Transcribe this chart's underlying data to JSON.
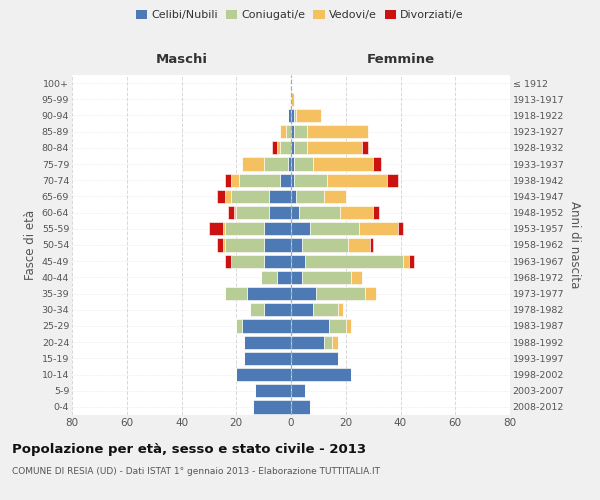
{
  "age_groups": [
    "0-4",
    "5-9",
    "10-14",
    "15-19",
    "20-24",
    "25-29",
    "30-34",
    "35-39",
    "40-44",
    "45-49",
    "50-54",
    "55-59",
    "60-64",
    "65-69",
    "70-74",
    "75-79",
    "80-84",
    "85-89",
    "90-94",
    "95-99",
    "100+"
  ],
  "birth_years": [
    "2008-2012",
    "2003-2007",
    "1998-2002",
    "1993-1997",
    "1988-1992",
    "1983-1987",
    "1978-1982",
    "1973-1977",
    "1968-1972",
    "1963-1967",
    "1958-1962",
    "1953-1957",
    "1948-1952",
    "1943-1947",
    "1938-1942",
    "1933-1937",
    "1928-1932",
    "1923-1927",
    "1918-1922",
    "1913-1917",
    "≤ 1912"
  ],
  "colors": {
    "celibi": "#4d7ab5",
    "coniugati": "#b8cc96",
    "vedovi": "#f5c060",
    "divorziati": "#cc1111"
  },
  "males": {
    "celibi": [
      14,
      13,
      20,
      17,
      17,
      18,
      10,
      16,
      5,
      10,
      10,
      10,
      8,
      8,
      4,
      1,
      0,
      0,
      1,
      0,
      0
    ],
    "coniugati": [
      0,
      0,
      0,
      0,
      0,
      2,
      5,
      8,
      6,
      12,
      14,
      14,
      12,
      14,
      15,
      9,
      4,
      2,
      0,
      0,
      0
    ],
    "vedovi": [
      0,
      0,
      0,
      0,
      0,
      0,
      0,
      0,
      0,
      0,
      1,
      1,
      1,
      2,
      3,
      8,
      1,
      2,
      0,
      0,
      0
    ],
    "divorziati": [
      0,
      0,
      0,
      0,
      0,
      0,
      0,
      0,
      0,
      2,
      2,
      5,
      2,
      3,
      2,
      0,
      2,
      0,
      0,
      0,
      0
    ]
  },
  "females": {
    "celibi": [
      7,
      5,
      22,
      17,
      12,
      14,
      8,
      9,
      4,
      5,
      4,
      7,
      3,
      2,
      1,
      1,
      1,
      1,
      1,
      0,
      0
    ],
    "coniugati": [
      0,
      0,
      0,
      0,
      3,
      6,
      9,
      18,
      18,
      36,
      17,
      18,
      15,
      10,
      12,
      7,
      5,
      5,
      1,
      0,
      0
    ],
    "vedovi": [
      0,
      0,
      0,
      0,
      2,
      2,
      2,
      4,
      4,
      2,
      8,
      14,
      12,
      8,
      22,
      22,
      20,
      22,
      9,
      1,
      0
    ],
    "divorziati": [
      0,
      0,
      0,
      0,
      0,
      0,
      0,
      0,
      0,
      2,
      1,
      2,
      2,
      0,
      4,
      3,
      2,
      0,
      0,
      0,
      0
    ]
  },
  "xlim": 80,
  "title": "Popolazione per età, sesso e stato civile - 2013",
  "subtitle": "COMUNE DI RESIA (UD) - Dati ISTAT 1° gennaio 2013 - Elaborazione TUTTITALIA.IT",
  "ylabel_left": "Fasce di età",
  "ylabel_right": "Anni di nascita",
  "xlabel_left": "Maschi",
  "xlabel_right": "Femmine",
  "legend_labels": [
    "Celibi/Nubili",
    "Coniugati/e",
    "Vedovi/e",
    "Divorziati/e"
  ],
  "bg_color": "#f0f0f0",
  "plot_bg_color": "#ffffff",
  "grid_color": "#d8d8d8"
}
